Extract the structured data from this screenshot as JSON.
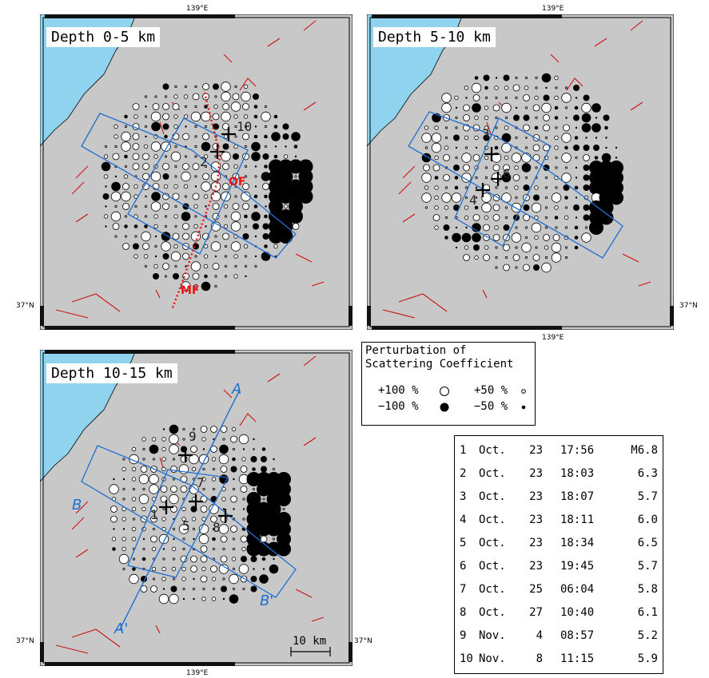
{
  "panels": [
    {
      "label": "Depth 0-5 km",
      "top_lon": "139°E",
      "bottom_lon": "",
      "left_lat": "37°N",
      "right_lat": ""
    },
    {
      "label": "Depth 5-10 km",
      "top_lon": "139°E",
      "bottom_lon": "139°E",
      "left_lat": "",
      "right_lat": "37°N"
    },
    {
      "label": "Depth 10-15 km",
      "top_lon": "",
      "bottom_lon": "139°E",
      "left_lat": "37°N",
      "right_lat": "37°N"
    }
  ],
  "fault_labels": {
    "of": "OF",
    "mf": "MF"
  },
  "section_labels": {
    "a": "A",
    "a_prime": "A'",
    "b": "B",
    "b_prime": "B'"
  },
  "scale_bar": "10 km",
  "panel_event_labels": {
    "p1": [
      "10",
      "2"
    ],
    "p2": [
      "3",
      "6",
      "4"
    ],
    "p3": [
      "9",
      "7",
      "1",
      "5",
      "8"
    ]
  },
  "legend": {
    "title_line1": "Perturbation of",
    "title_line2": "Scattering Coefficient",
    "rows": [
      {
        "left": "+100 %",
        "right": "+50 %"
      },
      {
        "left": "−100 %",
        "right": "−50 %"
      }
    ]
  },
  "events": [
    {
      "no": "1",
      "month": "Oct.",
      "day": "23",
      "time": "17:56",
      "mag": "M6.8"
    },
    {
      "no": "2",
      "month": "Oct.",
      "day": "23",
      "time": "18:03",
      "mag": "6.3"
    },
    {
      "no": "3",
      "month": "Oct.",
      "day": "23",
      "time": "18:07",
      "mag": "5.7"
    },
    {
      "no": "4",
      "month": "Oct.",
      "day": "23",
      "time": "18:11",
      "mag": "6.0"
    },
    {
      "no": "5",
      "month": "Oct.",
      "day": "23",
      "time": "18:34",
      "mag": "6.5"
    },
    {
      "no": "6",
      "month": "Oct.",
      "day": "23",
      "time": "19:45",
      "mag": "5.7"
    },
    {
      "no": "7",
      "month": "Oct.",
      "day": "25",
      "time": "06:04",
      "mag": "5.8"
    },
    {
      "no": "8",
      "month": "Oct.",
      "day": "27",
      "time": "10:40",
      "mag": "6.1"
    },
    {
      "no": "9",
      "month": "Nov.",
      "day": "4",
      "time": "08:57",
      "mag": "5.2"
    },
    {
      "no": "10",
      "month": "Nov.",
      "day": "8",
      "time": "11:15",
      "mag": "5.9"
    }
  ],
  "colors": {
    "land": "#c8c8c8",
    "sea": "#8fd3ee",
    "fault": "#cc1111",
    "box": "#1f6fd1",
    "label_red": "#ee1111"
  }
}
